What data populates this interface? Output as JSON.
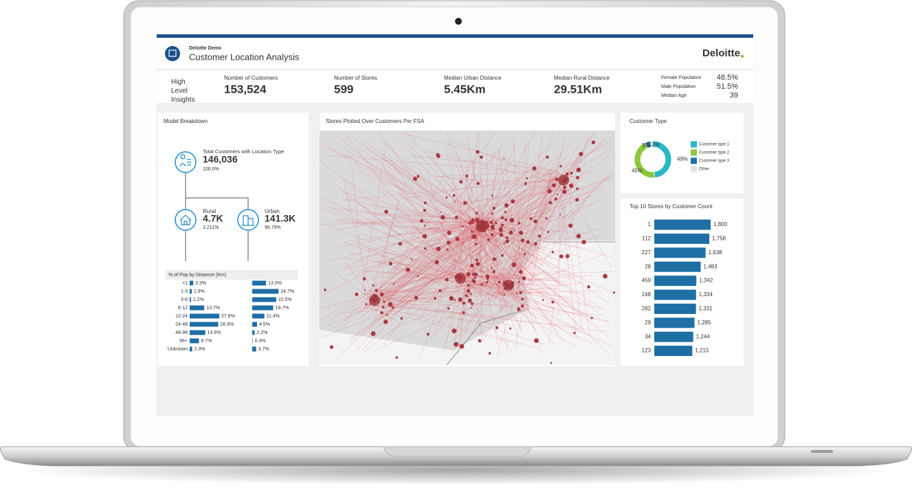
{
  "header": {
    "subtitle": "Deloitte Demo",
    "title": "Customer Location Analysis",
    "brand": "Deloitte"
  },
  "insights": {
    "label": "High Level Insights",
    "kpis": [
      {
        "label": "Number of Customers",
        "value": "153,524"
      },
      {
        "label": "Number of Stores",
        "value": "599"
      },
      {
        "label": "Median Urban Distance",
        "value": "5.45Km"
      },
      {
        "label": "Median Rural Distance",
        "value": "29.51Km"
      }
    ],
    "demographics": [
      {
        "label": "Female Population",
        "value": "48.5%"
      },
      {
        "label": "Male Population",
        "value": "51.5%"
      },
      {
        "label": "Median Age",
        "value": "39"
      }
    ]
  },
  "model_breakdown": {
    "title": "Model Breakdown",
    "total": {
      "label": "Total Customers with Location Type",
      "value": "146,036",
      "share": "100.0%"
    },
    "groups": [
      {
        "label": "Rural",
        "value": "4.7K",
        "share": "3.211%"
      },
      {
        "label": "Urban",
        "value": "141.3K",
        "share": "96.79%"
      }
    ],
    "distance": {
      "type": "bar",
      "title": "% of Pop by Distance (Km)",
      "categories": [
        "<1",
        "1-3",
        "3-6",
        "6-12",
        "12-24",
        "24-48",
        "48-96",
        "96+",
        "Unknown"
      ],
      "series": [
        {
          "color": "#1f6fa5",
          "values": [
            3.3,
            1.9,
            1.2,
            13.7,
            27.8,
            26.8,
            14.6,
            8.7,
            2.3
          ],
          "value_labels": [
            "3.3%",
            "1.9%",
            "1.2%",
            "13.7%",
            "27.8%",
            "26.8%",
            "14.6%",
            "8.7%",
            "2.3%"
          ]
        },
        {
          "color": "#1f6fa5",
          "values": [
            13.0,
            24.7,
            22.5,
            19.7,
            11.4,
            4.5,
            2.2,
            0.4,
            3.7
          ],
          "value_labels": [
            "13.0%",
            "24.7%",
            "22.5%",
            "19.7%",
            "11.4%",
            "4.5%",
            "2.2%",
            "0.4%",
            "3.7%"
          ]
        }
      ]
    }
  },
  "map": {
    "title": "Stores Plotted Over Customers Per FSA"
  },
  "customer_type": {
    "type": "pie",
    "title": "Customer Type",
    "categories": [
      "Customer type 1",
      "Customer type 2",
      "Customer type 3",
      "Other"
    ],
    "values": [
      49,
      45,
      5,
      2
    ],
    "value_labels": [
      "49%",
      "45%",
      "5%",
      "2%"
    ],
    "colors": [
      "#2ab7c6",
      "#8cc63f",
      "#1f6fa5",
      "#e3e3e3"
    ]
  },
  "top_stores": {
    "type": "bar",
    "title": "Top 10 Stores by Customer Count",
    "categories": [
      "1",
      "112",
      "227",
      "28",
      "459",
      "168",
      "282",
      "29",
      "34",
      "123"
    ],
    "values": [
      1800,
      1758,
      1638,
      1483,
      1342,
      1334,
      1331,
      1285,
      1244,
      1215
    ],
    "value_labels": [
      "1,800",
      "1,758",
      "1,638",
      "1,483",
      "1,342",
      "1,334",
      "1,331",
      "1,285",
      "1,244",
      "1,215"
    ],
    "color": "#1f6fa5"
  }
}
